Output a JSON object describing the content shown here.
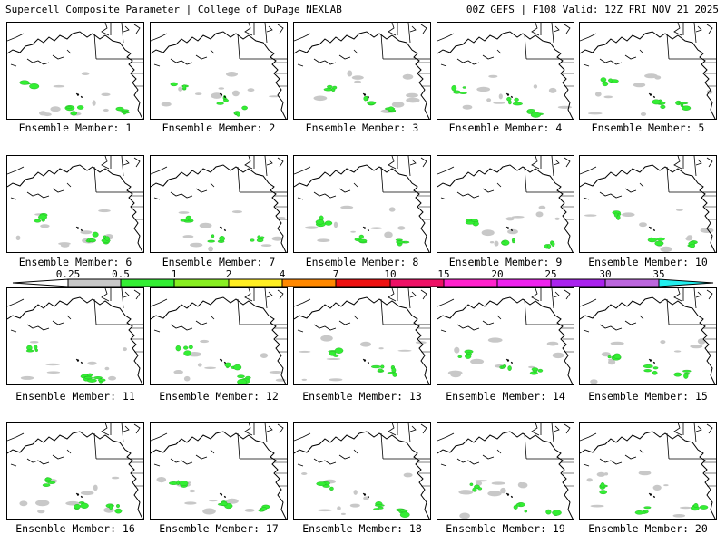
{
  "header": {
    "title": "Supercell Composite Parameter | College of DuPage NEXLAB",
    "run_info": "00Z GEFS | F108 Valid: 12Z FRI NOV 21 2025"
  },
  "legend": {
    "ticks": [
      "0.25",
      "0.5",
      "1",
      "2",
      "4",
      "7",
      "10",
      "15",
      "20",
      "25",
      "30",
      "35"
    ],
    "colors": [
      "#c8c8c8",
      "#33ee33",
      "#88ee22",
      "#ffee22",
      "#ff8800",
      "#ee1111",
      "#ee1166",
      "#ff22cc",
      "#ee22ee",
      "#aa22ee",
      "#bb66dd",
      "#22eeee"
    ]
  },
  "members": [
    {
      "label": "Ensemble Member: 1"
    },
    {
      "label": "Ensemble Member: 2"
    },
    {
      "label": "Ensemble Member: 3"
    },
    {
      "label": "Ensemble Member: 4"
    },
    {
      "label": "Ensemble Member: 5"
    },
    {
      "label": "Ensemble Member: 6"
    },
    {
      "label": "Ensemble Member: 7"
    },
    {
      "label": "Ensemble Member: 8"
    },
    {
      "label": "Ensemble Member: 9"
    },
    {
      "label": "Ensemble Member: 10"
    },
    {
      "label": "Ensemble Member: 11"
    },
    {
      "label": "Ensemble Member: 12"
    },
    {
      "label": "Ensemble Member: 13"
    },
    {
      "label": "Ensemble Member: 14"
    },
    {
      "label": "Ensemble Member: 15"
    },
    {
      "label": "Ensemble Member: 16"
    },
    {
      "label": "Ensemble Member: 17"
    },
    {
      "label": "Ensemble Member: 18"
    },
    {
      "label": "Ensemble Member: 19"
    },
    {
      "label": "Ensemble Member: 20"
    }
  ]
}
